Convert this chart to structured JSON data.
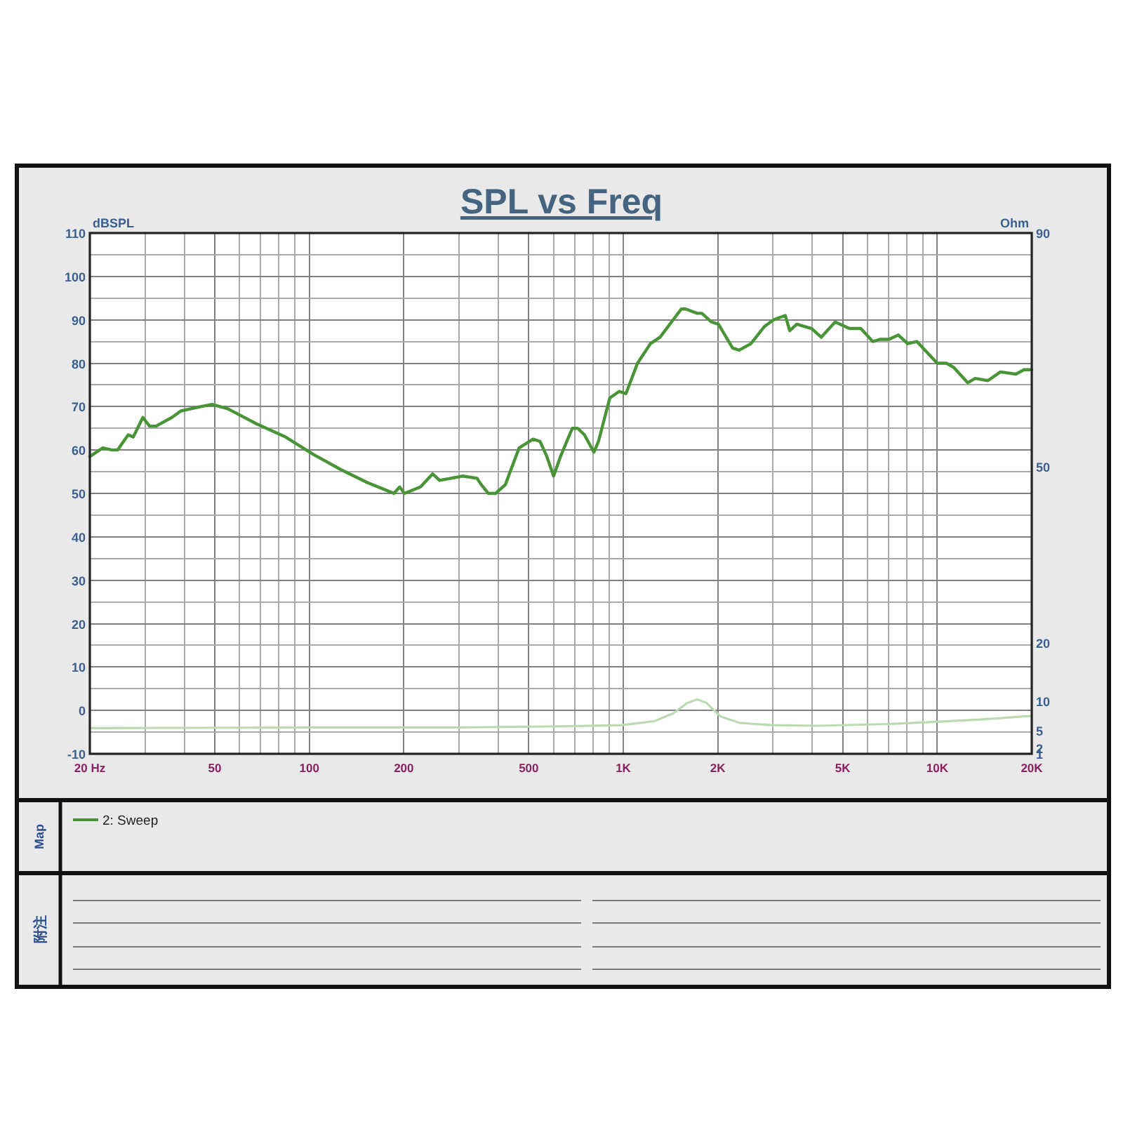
{
  "chart_data": {
    "type": "line",
    "title": "SPL vs Freq",
    "ylabel": "dBSPL",
    "y2label": "Ohm",
    "legend_title": "Map",
    "annotations": [
      "附注"
    ],
    "log": "x",
    "xlim": [
      20,
      20000
    ],
    "ylim": [
      -10,
      110
    ],
    "y2lim": [
      1,
      90
    ],
    "xticks": [
      {
        "value": 20,
        "label": "20 Hz"
      },
      {
        "value": 30,
        "label": null
      },
      {
        "value": 40,
        "label": null
      },
      50,
      {
        "value": 60,
        "label": null
      },
      {
        "value": 70,
        "label": null
      },
      {
        "value": 80,
        "label": null
      },
      {
        "value": 90,
        "label": null
      },
      100,
      200,
      {
        "value": 300,
        "label": null
      },
      {
        "value": 400,
        "label": null
      },
      500,
      {
        "value": 600,
        "label": null
      },
      {
        "value": 700,
        "label": null
      },
      {
        "value": 800,
        "label": null
      },
      {
        "value": 900,
        "label": null
      },
      {
        "value": 1000,
        "label": "1K"
      },
      {
        "value": 2000,
        "label": "2K"
      },
      {
        "value": 3000,
        "label": null
      },
      {
        "value": 4000,
        "label": null
      },
      {
        "value": 5000,
        "label": "5K"
      },
      {
        "value": 6000,
        "label": null
      },
      {
        "value": 7000,
        "label": null
      },
      {
        "value": 8000,
        "label": null
      },
      {
        "value": 9000,
        "label": null
      },
      {
        "value": 10000,
        "label": "10K"
      },
      {
        "value": 20000,
        "label": "20K"
      }
    ],
    "yticks": [
      -10,
      {
        "value": -5,
        "label": null
      },
      0,
      {
        "value": 5,
        "label": null
      },
      10,
      {
        "value": 15,
        "label": null
      },
      20,
      {
        "value": 25,
        "label": null
      },
      30,
      {
        "value": 35,
        "label": null
      },
      40,
      {
        "value": 45,
        "label": null
      },
      50,
      {
        "value": 55,
        "label": null
      },
      60,
      {
        "value": 65,
        "label": null
      },
      70,
      {
        "value": 75,
        "label": null
      },
      80,
      {
        "value": 85,
        "label": null
      },
      90,
      {
        "value": 95,
        "label": null
      },
      100,
      {
        "value": 105,
        "label": null
      },
      110
    ],
    "y2ticks": [
      1,
      2,
      5,
      10,
      20,
      50,
      90
    ],
    "grid": true,
    "legend": "bottom",
    "series": [
      {
        "name": "2: Sweep",
        "color": "#4a9438",
        "x": [
          20,
          22,
          23.5,
          24.5,
          26.5,
          27.5,
          29.5,
          31,
          32.5,
          36.5,
          39,
          45,
          49,
          55,
          68,
          84,
          103,
          126,
          153,
          179,
          186,
          194,
          201,
          226,
          247,
          260,
          283,
          308,
          342,
          353,
          372,
          392,
          421,
          466,
          516,
          543,
          571,
          600,
          631,
          688,
          716,
          752,
          806,
          834,
          906,
          970,
          1020,
          1110,
          1220,
          1310,
          1530,
          1580,
          1720,
          1780,
          1910,
          2010,
          2230,
          2340,
          2550,
          2820,
          3010,
          3280,
          3390,
          3570,
          3980,
          4270,
          4730,
          5250,
          5710,
          6230,
          6560,
          7020,
          7520,
          8050,
          8610,
          10000,
          10700,
          11300,
          12500,
          13200,
          14500,
          15900,
          17800,
          18900,
          20000
        ],
        "values": [
          58.5,
          60.5,
          60,
          60,
          63.5,
          63,
          67.5,
          65.5,
          65.5,
          67.5,
          69,
          70,
          70.5,
          69.5,
          66,
          63,
          59,
          55.5,
          52.5,
          50.5,
          50,
          51.5,
          50,
          51.5,
          54.5,
          53,
          53.5,
          54,
          53.5,
          52,
          50,
          50,
          52,
          60.5,
          62.5,
          62,
          58.5,
          54,
          58.5,
          65,
          65,
          63.5,
          59.5,
          62,
          72,
          73.5,
          73,
          80,
          84.5,
          86,
          92.5,
          92.5,
          91.5,
          91.5,
          89.5,
          89,
          83.5,
          83,
          84.5,
          88.5,
          90,
          91,
          87.5,
          89,
          88,
          86,
          89.5,
          88,
          88,
          85,
          85.5,
          85.5,
          86.5,
          84.5,
          85,
          80,
          80,
          79,
          75.5,
          76.5,
          76,
          78,
          77.5,
          78.5,
          78.5
        ]
      },
      {
        "color": "#bcdab2",
        "axis": "y2",
        "x": [
          20,
          100,
          300,
          630,
          990,
          1260,
          1440,
          1600,
          1720,
          1840,
          2040,
          2340,
          2960,
          4200,
          7020,
          10200,
          14000,
          20000
        ],
        "values": [
          5.4,
          5.5,
          5.5,
          5.7,
          5.9,
          6.6,
          7.9,
          9.7,
          10.3,
          9.7,
          7.4,
          6.3,
          5.9,
          5.8,
          6.1,
          6.5,
          6.9,
          7.5
        ]
      }
    ]
  }
}
